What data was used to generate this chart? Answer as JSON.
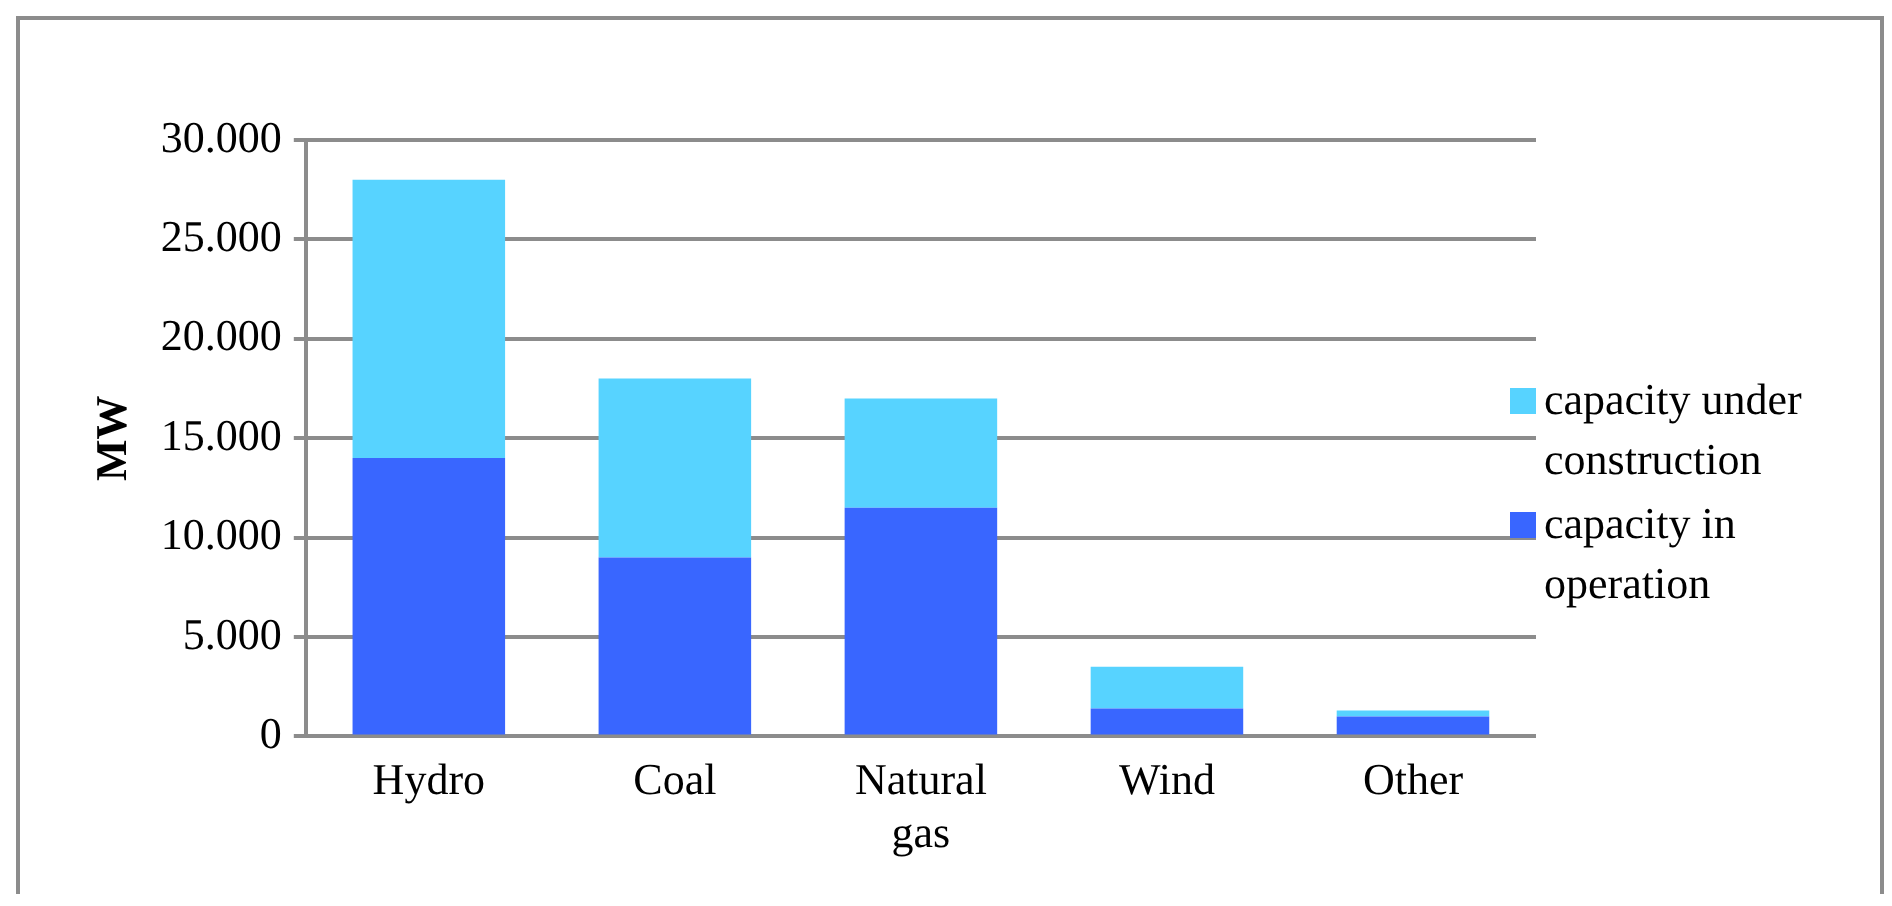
{
  "chart_data": {
    "type": "bar",
    "ylabel": "MW",
    "categories": [
      "Hydro",
      "Coal",
      "Natural gas",
      "Wind",
      "Other"
    ],
    "stacked": true,
    "series": [
      {
        "name": "capacity in operation",
        "color": "#3966ff",
        "values": [
          14000,
          9000,
          11500,
          1400,
          1000
        ]
      },
      {
        "name": "capacity under construction",
        "color": "#57d3ff",
        "values": [
          14000,
          9000,
          5500,
          2100,
          300
        ]
      }
    ],
    "ylim": [
      0,
      30000
    ],
    "yticks": [
      {
        "value": 0,
        "label": "0"
      },
      {
        "value": 5000,
        "label": "5.000"
      },
      {
        "value": 10000,
        "label": "10.000"
      },
      {
        "value": 15000,
        "label": "15.000"
      },
      {
        "value": 20000,
        "label": "20.000"
      },
      {
        "value": 25000,
        "label": "25.000"
      },
      {
        "value": 30000,
        "label": "30.000"
      }
    ],
    "grid": "y",
    "legend": "right"
  }
}
